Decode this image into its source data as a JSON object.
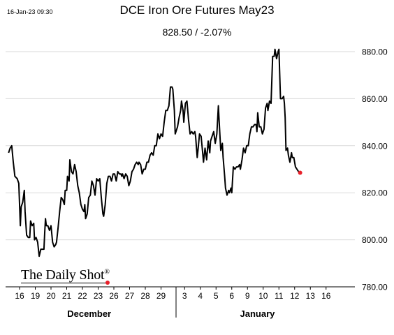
{
  "header": {
    "timestamp": "16-Jan-23 09:30",
    "title": "DCE Iron Ore Futures May23",
    "subtitle": "828.50  /  -2.07%"
  },
  "logo": {
    "text": "The Daily Shot",
    "mark": "®"
  },
  "months": [
    {
      "label": "December"
    },
    {
      "label": "January"
    }
  ],
  "chart_data": {
    "type": "line",
    "title": "DCE Iron Ore Futures May23",
    "subtitle": "828.50  /  -2.07%",
    "ylim": [
      780,
      890
    ],
    "yticks": [
      780,
      800,
      820,
      840,
      860,
      880
    ],
    "ytick_labels": [
      "780.00",
      "800.00",
      "820.00",
      "840.00",
      "860.00",
      "880.00"
    ],
    "grid": true,
    "y_axis_side": "right",
    "x_ticks": [
      {
        "label": "16",
        "pos": 0
      },
      {
        "label": "19",
        "pos": 1
      },
      {
        "label": "20",
        "pos": 2
      },
      {
        "label": "21",
        "pos": 3
      },
      {
        "label": "22",
        "pos": 4
      },
      {
        "label": "23",
        "pos": 5
      },
      {
        "label": "26",
        "pos": 6
      },
      {
        "label": "27",
        "pos": 7
      },
      {
        "label": "28",
        "pos": 8
      },
      {
        "label": "29",
        "pos": 9
      },
      {
        "label": "3",
        "pos": 10.5
      },
      {
        "label": "4",
        "pos": 11.5
      },
      {
        "label": "5",
        "pos": 12.5
      },
      {
        "label": "6",
        "pos": 13.5
      },
      {
        "label": "9",
        "pos": 14.5
      },
      {
        "label": "10",
        "pos": 15.5
      },
      {
        "label": "11",
        "pos": 16.5
      },
      {
        "label": "12",
        "pos": 17.5
      },
      {
        "label": "13",
        "pos": 18.5
      },
      {
        "label": "16",
        "pos": 19.5
      }
    ],
    "month_separator_pos": 10,
    "series": [
      {
        "color": "#000000",
        "points": [
          [
            -0.7,
            837
          ],
          [
            -0.6,
            839
          ],
          [
            -0.5,
            840
          ],
          [
            -0.4,
            833
          ],
          [
            -0.3,
            827
          ],
          [
            -0.15,
            826
          ],
          [
            -0.05,
            824
          ],
          [
            0.05,
            806
          ],
          [
            0.1,
            814
          ],
          [
            0.2,
            816
          ],
          [
            0.3,
            821
          ],
          [
            0.35,
            812
          ],
          [
            0.45,
            802
          ],
          [
            0.55,
            801
          ],
          [
            0.65,
            801
          ],
          [
            0.7,
            808
          ],
          [
            0.8,
            806
          ],
          [
            0.9,
            807
          ],
          [
            0.95,
            800
          ],
          [
            1.05,
            801
          ],
          [
            1.15,
            799
          ],
          [
            1.2,
            796
          ],
          [
            1.25,
            793
          ],
          [
            1.35,
            796
          ],
          [
            1.45,
            796
          ],
          [
            1.55,
            796
          ],
          [
            1.6,
            803
          ],
          [
            1.65,
            809
          ],
          [
            1.7,
            806
          ],
          [
            1.8,
            806
          ],
          [
            1.9,
            804
          ],
          [
            2.0,
            806
          ],
          [
            2.1,
            799
          ],
          [
            2.2,
            797
          ],
          [
            2.3,
            798
          ],
          [
            2.35,
            799
          ],
          [
            2.45,
            805
          ],
          [
            2.55,
            812
          ],
          [
            2.65,
            818
          ],
          [
            2.75,
            817
          ],
          [
            2.85,
            815
          ],
          [
            2.9,
            821
          ],
          [
            3.0,
            821
          ],
          [
            3.05,
            827
          ],
          [
            3.15,
            825
          ],
          [
            3.2,
            834
          ],
          [
            3.3,
            829
          ],
          [
            3.4,
            828
          ],
          [
            3.5,
            832
          ],
          [
            3.6,
            829
          ],
          [
            3.7,
            823
          ],
          [
            3.8,
            820
          ],
          [
            3.9,
            815
          ],
          [
            4.0,
            813
          ],
          [
            4.1,
            812
          ],
          [
            4.15,
            815
          ],
          [
            4.2,
            809
          ],
          [
            4.3,
            811
          ],
          [
            4.4,
            818
          ],
          [
            4.5,
            819
          ],
          [
            4.6,
            825
          ],
          [
            4.7,
            823
          ],
          [
            4.8,
            819
          ],
          [
            4.9,
            826
          ],
          [
            5.0,
            825
          ],
          [
            5.1,
            826
          ],
          [
            5.2,
            818
          ],
          [
            5.3,
            811
          ],
          [
            5.35,
            810
          ],
          [
            5.45,
            815
          ],
          [
            5.55,
            824
          ],
          [
            5.65,
            827
          ],
          [
            5.75,
            827
          ],
          [
            5.85,
            825
          ],
          [
            5.95,
            828
          ],
          [
            6.05,
            828
          ],
          [
            6.15,
            825
          ],
          [
            6.25,
            829
          ],
          [
            6.35,
            828
          ],
          [
            6.45,
            828
          ],
          [
            6.5,
            827
          ],
          [
            6.55,
            828
          ],
          [
            6.65,
            826
          ],
          [
            6.75,
            828
          ],
          [
            6.85,
            827
          ],
          [
            6.95,
            823
          ],
          [
            7.05,
            825
          ],
          [
            7.15,
            829
          ],
          [
            7.25,
            830
          ],
          [
            7.35,
            832
          ],
          [
            7.45,
            833
          ],
          [
            7.55,
            832
          ],
          [
            7.6,
            833
          ],
          [
            7.7,
            832
          ],
          [
            7.8,
            828
          ],
          [
            7.9,
            830
          ],
          [
            8.0,
            830
          ],
          [
            8.1,
            833
          ],
          [
            8.2,
            833
          ],
          [
            8.3,
            836
          ],
          [
            8.4,
            837
          ],
          [
            8.5,
            836
          ],
          [
            8.6,
            840
          ],
          [
            8.7,
            840
          ],
          [
            8.8,
            845
          ],
          [
            8.9,
            843
          ],
          [
            9.0,
            845
          ],
          [
            9.1,
            844
          ],
          [
            9.2,
            850
          ],
          [
            9.3,
            855
          ],
          [
            9.4,
            855
          ],
          [
            9.5,
            857
          ],
          [
            9.6,
            865
          ],
          [
            9.7,
            865
          ],
          [
            9.75,
            864
          ],
          [
            9.85,
            855
          ],
          [
            9.9,
            845
          ],
          [
            9.95,
            846
          ],
          [
            10.05,
            848
          ],
          [
            10.15,
            852
          ],
          [
            10.25,
            855
          ],
          [
            10.3,
            859
          ],
          [
            10.4,
            855
          ],
          [
            10.45,
            850
          ],
          [
            10.55,
            858
          ],
          [
            10.65,
            859
          ],
          [
            10.75,
            851
          ],
          [
            10.85,
            845
          ],
          [
            10.95,
            846
          ],
          [
            11.05,
            845
          ],
          [
            11.15,
            846
          ],
          [
            11.2,
            844
          ],
          [
            11.3,
            835
          ],
          [
            11.35,
            838
          ],
          [
            11.45,
            845
          ],
          [
            11.55,
            844
          ],
          [
            11.65,
            837
          ],
          [
            11.7,
            833
          ],
          [
            11.8,
            839
          ],
          [
            11.9,
            834
          ],
          [
            12.0,
            842
          ],
          [
            12.1,
            837
          ],
          [
            12.15,
            842
          ],
          [
            12.25,
            844
          ],
          [
            12.35,
            846
          ],
          [
            12.45,
            841
          ],
          [
            12.55,
            845
          ],
          [
            12.65,
            857
          ],
          [
            12.7,
            850
          ],
          [
            12.8,
            838
          ],
          [
            12.9,
            841
          ],
          [
            12.95,
            835
          ],
          [
            13.05,
            827
          ],
          [
            13.1,
            822
          ],
          [
            13.2,
            819
          ],
          [
            13.3,
            821
          ],
          [
            13.35,
            820
          ],
          [
            13.45,
            822
          ],
          [
            13.5,
            820
          ],
          [
            13.6,
            831
          ],
          [
            13.7,
            830
          ],
          [
            13.8,
            831
          ],
          [
            13.9,
            831
          ],
          [
            14.0,
            832
          ],
          [
            14.05,
            830
          ],
          [
            14.15,
            834
          ],
          [
            14.25,
            839
          ],
          [
            14.35,
            837
          ],
          [
            14.45,
            840
          ],
          [
            14.55,
            840
          ],
          [
            14.65,
            845
          ],
          [
            14.75,
            848
          ],
          [
            14.85,
            848
          ],
          [
            14.95,
            849
          ],
          [
            15.05,
            849
          ],
          [
            15.1,
            846
          ],
          [
            15.15,
            854
          ],
          [
            15.25,
            848
          ],
          [
            15.35,
            848
          ],
          [
            15.45,
            845
          ],
          [
            15.55,
            847
          ],
          [
            15.65,
            856
          ],
          [
            15.75,
            858
          ],
          [
            15.8,
            855
          ],
          [
            15.9,
            859
          ],
          [
            16.0,
            858
          ],
          [
            16.1,
            878
          ],
          [
            16.2,
            878
          ],
          [
            16.25,
            881
          ],
          [
            16.35,
            877
          ],
          [
            16.45,
            880
          ],
          [
            16.5,
            881
          ],
          [
            16.6,
            860
          ],
          [
            16.7,
            860
          ],
          [
            16.8,
            861
          ],
          [
            16.85,
            858
          ],
          [
            16.9,
            852
          ],
          [
            16.95,
            838
          ],
          [
            17.05,
            839
          ],
          [
            17.1,
            836
          ],
          [
            17.2,
            833
          ],
          [
            17.3,
            837
          ],
          [
            17.35,
            835
          ],
          [
            17.45,
            835
          ],
          [
            17.55,
            831
          ],
          [
            17.65,
            830
          ],
          [
            17.75,
            829
          ],
          [
            17.85,
            828.5
          ]
        ]
      }
    ],
    "last_value": 828.5,
    "last_marker_color": "#e8202a"
  }
}
